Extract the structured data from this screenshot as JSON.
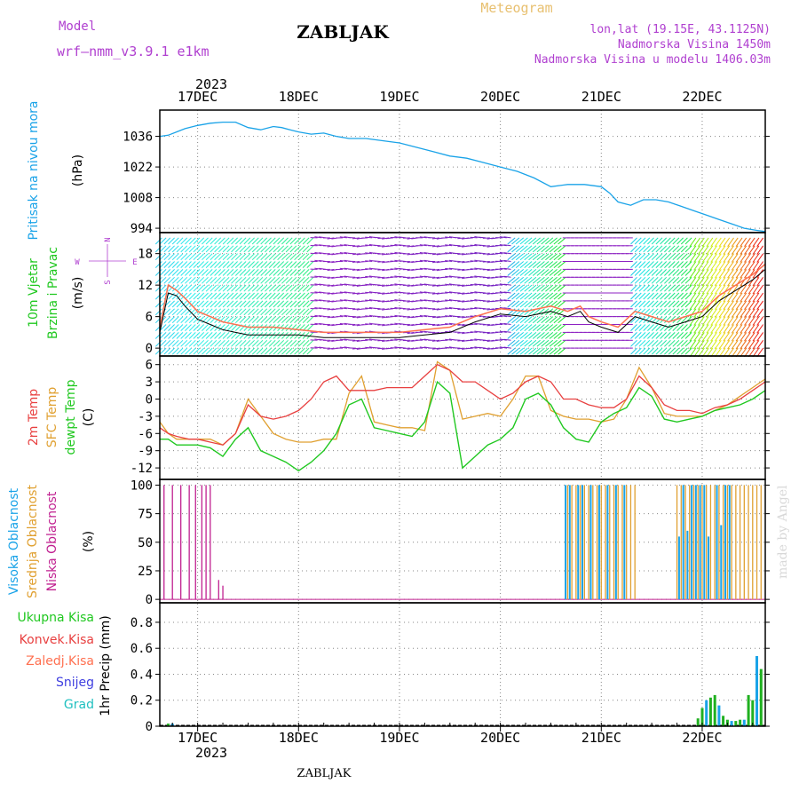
{
  "header": {
    "model_label": "Model",
    "model_name": "wrf–nmm_v3.9.1  e1km",
    "title": "ZABLJAK",
    "meteogram_label": "Meteogram",
    "coords": "lon,lat (19.15E, 43.1125N)",
    "elevation": "Nadmorska Visina 1450m",
    "model_elevation": "Nadmorska Visina u modelu 1406.03m",
    "footer_title": "ZABLJAK",
    "watermark": "made by Angel"
  },
  "colors": {
    "pressure": "#1aa3e8",
    "temp2m": "#e84040",
    "sfc": "#e0a030",
    "dew": "#20c820",
    "low_cloud": "#c02090",
    "mid_cloud": "#e0a030",
    "high_cloud": "#1aa3e8",
    "wind_speed": "#ff7050",
    "purple_text": "#b040d0",
    "gold_text": "#e8c070"
  },
  "x_axis": {
    "top_year": "2023",
    "bottom_year": "2023",
    "days": [
      "17DEC",
      "18DEC",
      "19DEC",
      "20DEC",
      "21DEC",
      "22DEC"
    ],
    "t_start_hours": -9,
    "t_end_hours": 135
  },
  "chart_data": [
    {
      "type": "line",
      "panel": "pressure",
      "ylabel_1": "Pritisak na nivou mora",
      "ylabel_2": "(hPa)",
      "yticks": [
        994,
        1008,
        1022,
        1036
      ],
      "ylim": [
        992,
        1048
      ],
      "x_hours": [
        -9,
        -7,
        -5,
        -3,
        0,
        3,
        6,
        9,
        12,
        15,
        18,
        20,
        22,
        24,
        27,
        30,
        33,
        36,
        40,
        44,
        48,
        52,
        56,
        60,
        64,
        68,
        72,
        76,
        80,
        84,
        88,
        92,
        96,
        98,
        100,
        103,
        106,
        109,
        112,
        115,
        118,
        121,
        124,
        127,
        130,
        133,
        135
      ],
      "values": [
        1036,
        1036.5,
        1038,
        1039.5,
        1041,
        1042,
        1042.5,
        1042.5,
        1040,
        1039,
        1040.5,
        1040,
        1039,
        1038,
        1037,
        1037.5,
        1036,
        1035,
        1035,
        1034,
        1033,
        1031,
        1029,
        1027,
        1026,
        1024,
        1022,
        1020,
        1017,
        1013,
        1014,
        1014,
        1013,
        1010,
        1006,
        1004.5,
        1007,
        1007,
        1006,
        1004,
        1002,
        1000,
        998,
        996,
        994,
        993,
        992.5
      ]
    },
    {
      "type": "line",
      "panel": "wind",
      "ylabel_1": "10m Vjetar",
      "ylabel_2": "Brzina i Pravac",
      "ylabel_3": "(m/s)",
      "compass": {
        "n": "N",
        "w": "W",
        "e": "E",
        "s": "S"
      },
      "yticks": [
        0,
        6,
        12,
        18
      ],
      "ylim": [
        -1.5,
        22
      ],
      "x_hours": [
        -9,
        -7,
        -5,
        -3,
        0,
        3,
        6,
        9,
        12,
        18,
        24,
        30,
        36,
        42,
        48,
        54,
        60,
        66,
        72,
        78,
        84,
        88,
        91,
        93,
        96,
        100,
        104,
        108,
        112,
        116,
        120,
        124,
        128,
        132,
        135
      ],
      "series": [
        {
          "name": "speed",
          "values": [
            3,
            10.5,
            10,
            8,
            5.5,
            4.5,
            3.5,
            3,
            2.5,
            2.5,
            2.5,
            2,
            2,
            2,
            2,
            2.5,
            3,
            5,
            6.5,
            6,
            7,
            6,
            7,
            5,
            4,
            3,
            6,
            5,
            4,
            5,
            6,
            9,
            11,
            13,
            15
          ]
        },
        {
          "name": "gust",
          "values": [
            4,
            12,
            11,
            9.5,
            7,
            6,
            5,
            4.5,
            4,
            4,
            3.5,
            3,
            3,
            3,
            3,
            3.5,
            4,
            6,
            7.5,
            7,
            8,
            7,
            8,
            6,
            5,
            4,
            7,
            6,
            5,
            6,
            7,
            10,
            12,
            14,
            16
          ]
        }
      ]
    },
    {
      "type": "line",
      "panel": "temperature",
      "ylabel_1": "2m Temp",
      "ylabel_2": "SFC Temp",
      "ylabel_3": "dewpt Temp",
      "ylabel_4": "(C)",
      "yticks": [
        6,
        3,
        0,
        -3,
        -6,
        -9,
        -12
      ],
      "ylim": [
        -14,
        7.5
      ],
      "x_hours": [
        -9,
        -7,
        -5,
        -2,
        0,
        3,
        6,
        9,
        12,
        15,
        18,
        21,
        24,
        27,
        30,
        33,
        36,
        39,
        42,
        45,
        48,
        51,
        54,
        57,
        60,
        63,
        66,
        69,
        72,
        75,
        78,
        81,
        84,
        87,
        90,
        93,
        96,
        99,
        102,
        105,
        108,
        111,
        114,
        117,
        120,
        123,
        126,
        129,
        132,
        135
      ],
      "series": [
        {
          "name": "2m Temp",
          "values": [
            -5,
            -6,
            -6.5,
            -7,
            -7,
            -7.5,
            -8,
            -6,
            -1,
            -3,
            -3.5,
            -3,
            -2,
            0,
            3,
            4,
            1.5,
            1.5,
            1.5,
            2,
            2,
            2,
            4,
            6,
            5,
            3,
            3,
            1.5,
            0,
            1,
            3,
            4,
            3,
            0,
            0,
            -1,
            -1.5,
            -1.5,
            0,
            4,
            2,
            -1,
            -2,
            -2,
            -2.5,
            -1.5,
            -1,
            0,
            1.5,
            3
          ]
        },
        {
          "name": "SFC Temp",
          "values": [
            -4,
            -6,
            -7,
            -7,
            -7,
            -7,
            -8,
            -6,
            0,
            -3,
            -6,
            -7,
            -7.5,
            -7.5,
            -7,
            -7,
            1,
            4,
            -4,
            -4.5,
            -5,
            -5,
            -5.5,
            6.5,
            5,
            -3.5,
            -3,
            -2.5,
            -3,
            0,
            4,
            4,
            -2,
            -3,
            -3.5,
            -3.5,
            -4,
            -3.5,
            0,
            5.5,
            2,
            -2.5,
            -3,
            -3,
            -3,
            -2,
            -1,
            0.5,
            2,
            3.5
          ]
        },
        {
          "name": "dewpt Temp",
          "values": [
            -7,
            -7,
            -8,
            -8,
            -8,
            -8.5,
            -10,
            -7,
            -5,
            -9,
            -10,
            -11,
            -12.5,
            -11,
            -9,
            -6,
            -1,
            0,
            -5,
            -5.5,
            -6,
            -6.5,
            -4,
            3,
            1,
            -12,
            -10,
            -8,
            -7,
            -5,
            0,
            1,
            -1,
            -5,
            -7,
            -7.5,
            -4,
            -2.5,
            -1.5,
            2,
            0.5,
            -3.5,
            -4,
            -3.5,
            -3,
            -2,
            -1.5,
            -1,
            0,
            1.5
          ]
        }
      ]
    },
    {
      "type": "bar",
      "panel": "clouds",
      "ylabel_1": "Visoka Oblacnost",
      "ylabel_2": "Srednja Oblacnost",
      "ylabel_3": "Niska Oblacnost",
      "ylabel_4": "(%)",
      "yticks": [
        0,
        25,
        50,
        75,
        100
      ],
      "ylim": [
        -3,
        105
      ],
      "series": [
        {
          "name": "Niska Oblacnost",
          "x_hours": [
            -8,
            -6,
            -4,
            -2,
            -0.5,
            1,
            2,
            3,
            5,
            6
          ],
          "values": [
            100,
            100,
            100,
            100,
            100,
            100,
            100,
            100,
            17,
            12
          ]
        },
        {
          "name": "Srednja Oblacnost",
          "x_hours": [
            88,
            89,
            90,
            91,
            92,
            93,
            94,
            95,
            96,
            97,
            98,
            99,
            100,
            101,
            102,
            103,
            104,
            114,
            115,
            116,
            117,
            118,
            119,
            120,
            121,
            122,
            123,
            124,
            125,
            126,
            127,
            128,
            129,
            130,
            131,
            132,
            133,
            134
          ],
          "values": [
            100,
            100,
            100,
            100,
            100,
            100,
            100,
            100,
            100,
            100,
            100,
            100,
            100,
            100,
            100,
            100,
            100,
            100,
            100,
            100,
            100,
            100,
            100,
            100,
            100,
            100,
            100,
            100,
            100,
            100,
            100,
            100,
            100,
            100,
            100,
            100,
            100,
            100
          ]
        },
        {
          "name": "Visoka Oblacnost",
          "x_hours": [
            87.5,
            88.5,
            90.5,
            91.5,
            93.5,
            95.5,
            97.5,
            99.5,
            101.5,
            114.5,
            115.5,
            116.5,
            117.5,
            118.5,
            119.5,
            120.5,
            121.5,
            123.5,
            124.5,
            125.5,
            126.5
          ],
          "values": [
            100,
            100,
            100,
            100,
            100,
            100,
            100,
            100,
            100,
            55,
            100,
            60,
            100,
            100,
            100,
            100,
            55,
            100,
            65,
            100,
            100
          ]
        }
      ]
    },
    {
      "type": "bar",
      "panel": "precipitation",
      "legend": [
        "Ukupna  Kisa",
        "Konvek.Kisa",
        "Zaledj.Kisa",
        "Snijeg",
        "Grad"
      ],
      "ylabel": "1hr Precip (mm)",
      "yticks": [
        0,
        0.2,
        0.4,
        0.6,
        0.8
      ],
      "ylim": [
        0,
        0.95
      ],
      "series": [
        {
          "name": "Ukupna  Kisa",
          "x_hours": [
            -7,
            -6,
            119,
            120,
            121,
            122,
            123,
            124,
            125,
            126,
            127,
            128,
            129,
            130,
            131,
            132,
            133,
            134
          ],
          "values": [
            0.02,
            0.02,
            0.06,
            0.14,
            0.2,
            0.22,
            0.24,
            0.16,
            0.08,
            0.05,
            0.04,
            0.04,
            0.05,
            0.05,
            0.24,
            0.2,
            0.54,
            0.44
          ]
        }
      ]
    }
  ]
}
